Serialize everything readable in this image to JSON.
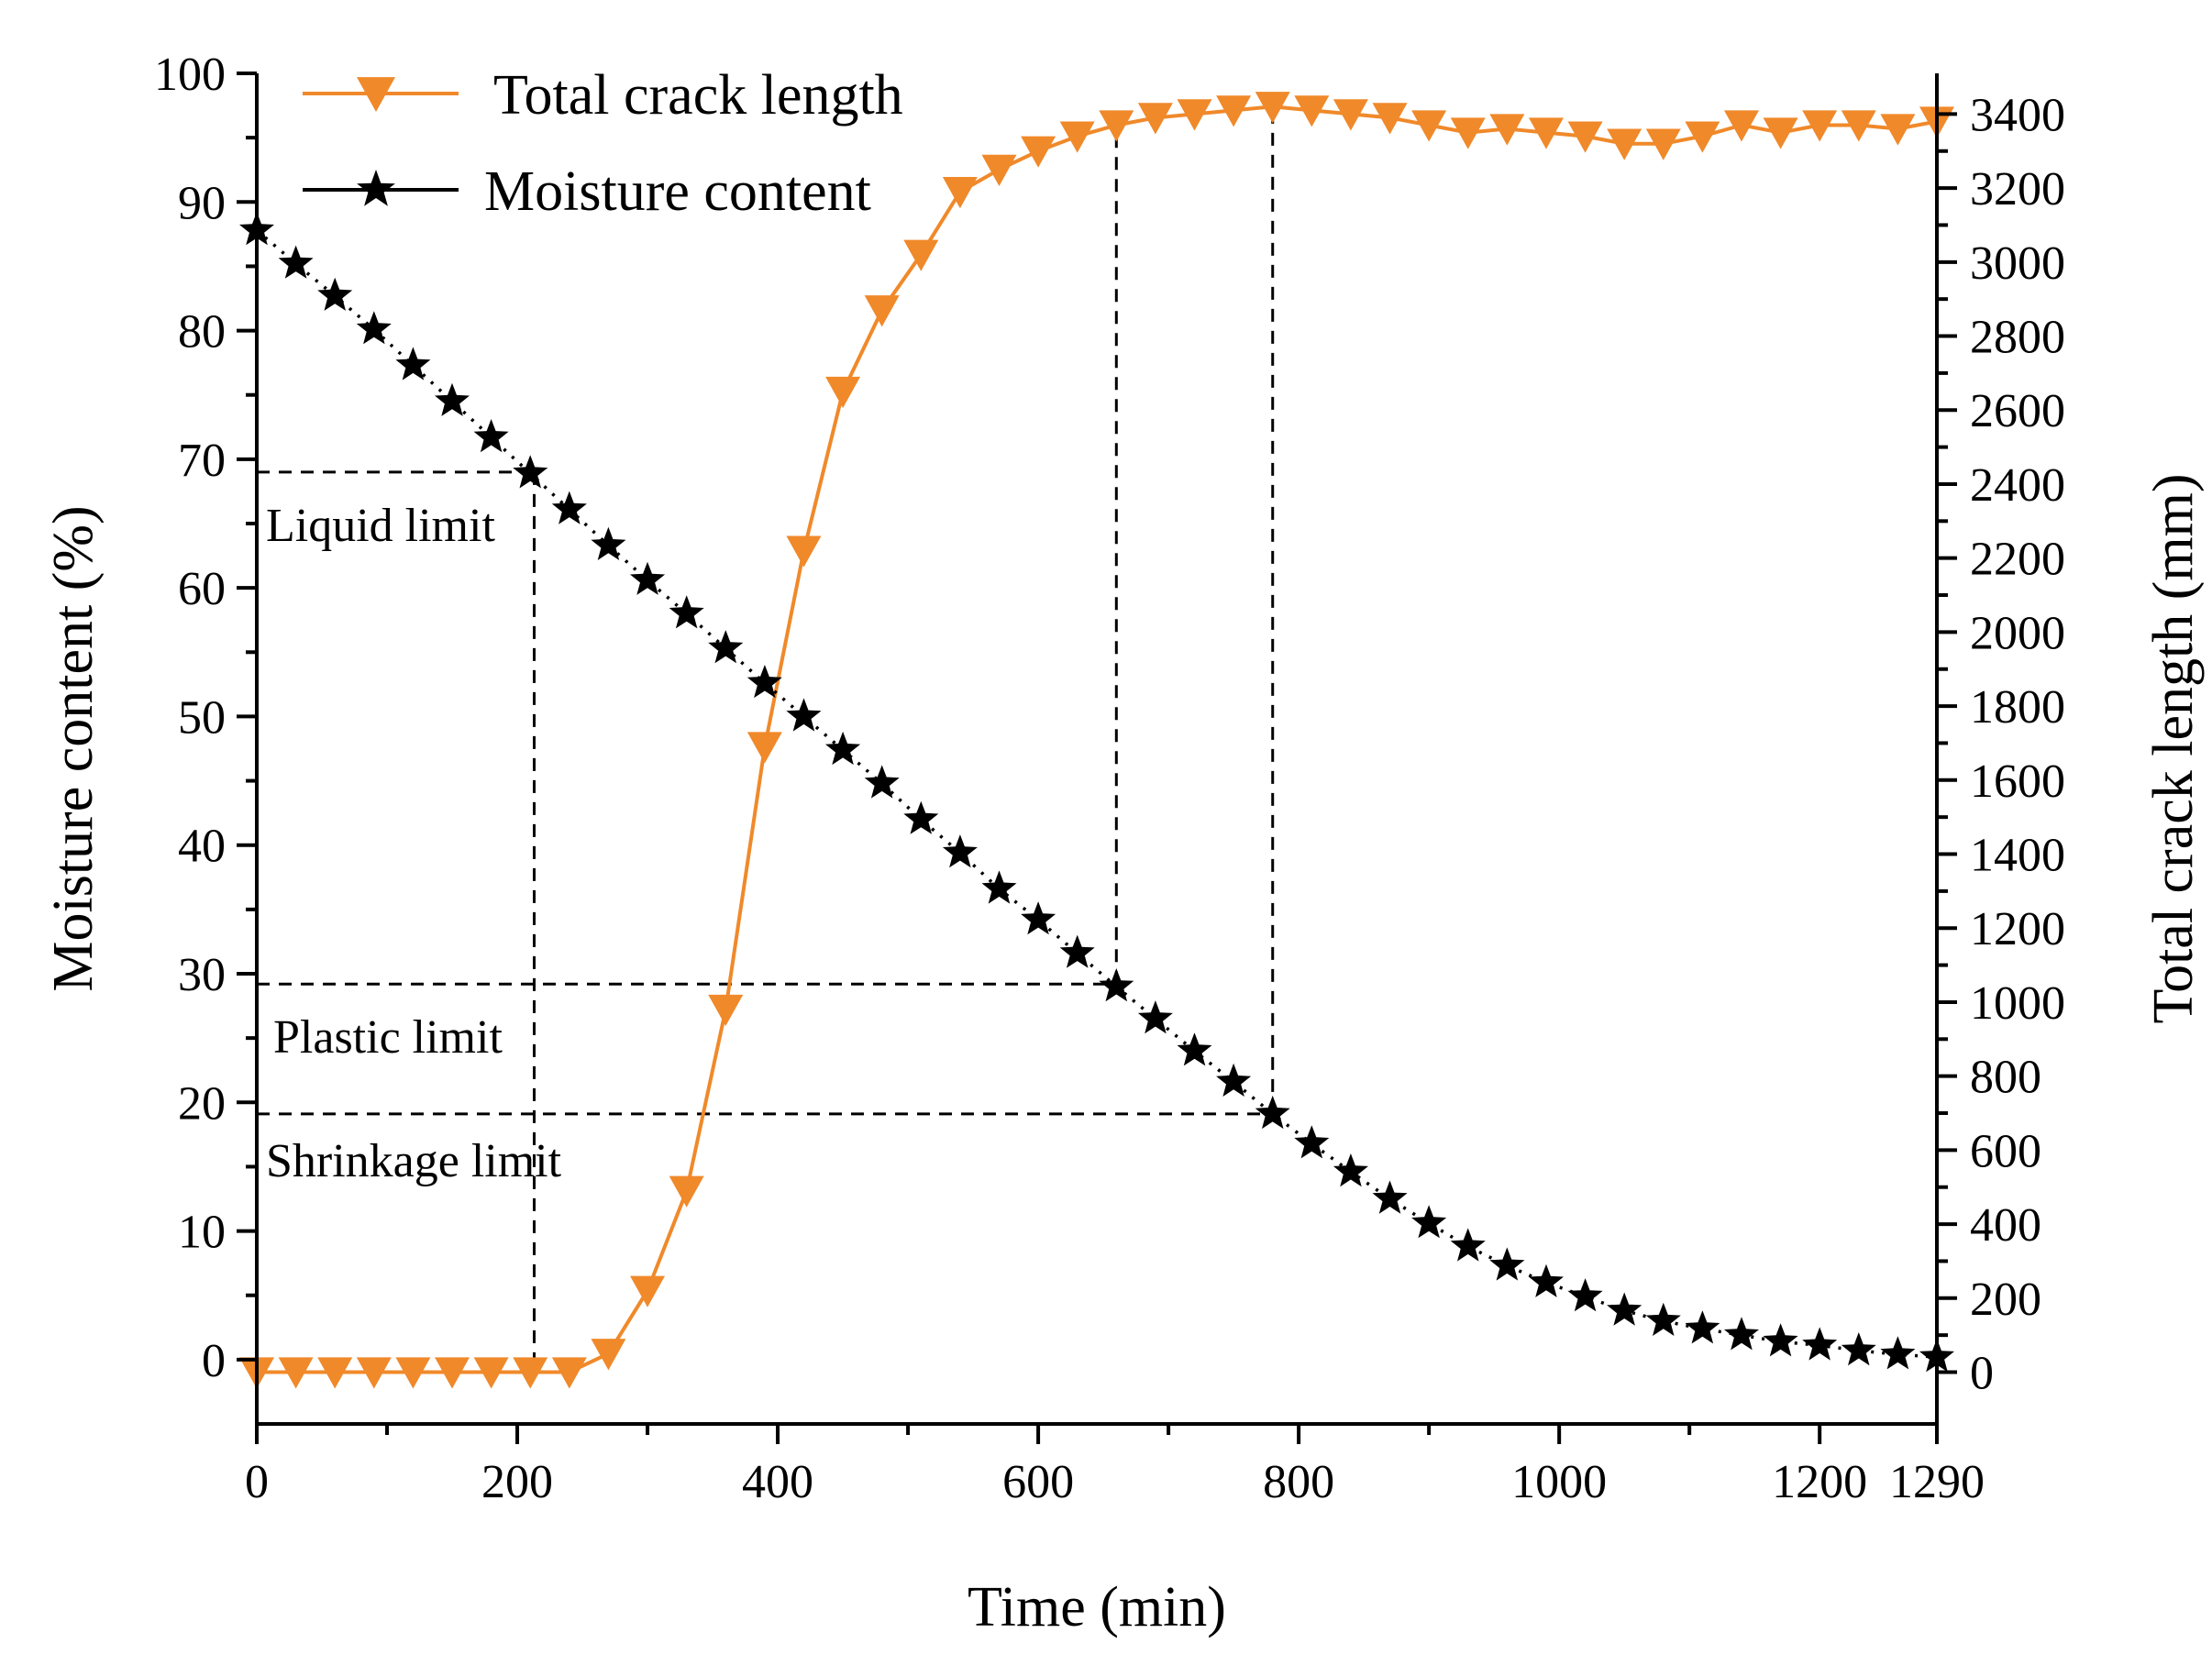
{
  "chart_data": {
    "type": "line",
    "title": "",
    "xlabel": "Time (min)",
    "ylabel_left": "Moisture content (%)",
    "ylabel_right": "Total crack length (mm)",
    "xlim": [
      0,
      1290
    ],
    "ylim_left": [
      -5,
      100
    ],
    "ylim_right": [
      -140,
      3510
    ],
    "x_ticks": [
      0,
      200,
      400,
      600,
      800,
      1000,
      1200,
      1290
    ],
    "y_left_ticks": [
      0,
      10,
      20,
      30,
      40,
      50,
      60,
      70,
      80,
      90,
      100
    ],
    "y_right_ticks": [
      0,
      200,
      400,
      600,
      800,
      1000,
      1200,
      1400,
      1600,
      1800,
      2000,
      2200,
      2400,
      2600,
      2800,
      3000,
      3200,
      3400
    ],
    "x_tick_labels": [
      "0",
      "200",
      "400",
      "600",
      "800",
      "1000",
      "1200",
      "1290"
    ],
    "y_left_tick_labels": [
      "0",
      "10",
      "20",
      "30",
      "40",
      "50",
      "60",
      "70",
      "80",
      "90",
      "100"
    ],
    "y_right_tick_labels": [
      "0",
      "200",
      "400",
      "600",
      "800",
      "1000",
      "1200",
      "1400",
      "1600",
      "1800",
      "2000",
      "2200",
      "2400",
      "2600",
      "2800",
      "3000",
      "3200",
      "3400"
    ],
    "legend": [
      "Total crack length",
      "Moisture content"
    ],
    "legend_position": "top-left",
    "series": [
      {
        "name": "Total crack length",
        "axis": "right",
        "color": "#f0892a",
        "marker": "triangle-down",
        "line_style": "solid",
        "x": [
          0,
          30,
          60,
          90,
          120,
          150,
          180,
          210,
          240,
          270,
          300,
          330,
          360,
          390,
          420,
          450,
          480,
          510,
          540,
          570,
          600,
          630,
          660,
          690,
          720,
          750,
          780,
          810,
          840,
          870,
          900,
          930,
          960,
          990,
          1020,
          1050,
          1080,
          1110,
          1140,
          1170,
          1200,
          1230,
          1260,
          1290
        ],
        "values": [
          0,
          0,
          0,
          0,
          0,
          0,
          0,
          0,
          0,
          50,
          220,
          490,
          980,
          1690,
          2220,
          2650,
          2870,
          3020,
          3190,
          3250,
          3300,
          3340,
          3370,
          3390,
          3400,
          3410,
          3420,
          3410,
          3400,
          3390,
          3370,
          3350,
          3360,
          3350,
          3340,
          3320,
          3320,
          3340,
          3370,
          3350,
          3370,
          3370,
          3360,
          3380
        ]
      },
      {
        "name": "Moisture content",
        "axis": "left",
        "color": "#000000",
        "marker": "star",
        "line_style": "dotted",
        "x": [
          0,
          30,
          60,
          90,
          120,
          150,
          180,
          210,
          240,
          270,
          300,
          330,
          360,
          390,
          420,
          450,
          480,
          510,
          540,
          570,
          600,
          630,
          660,
          690,
          720,
          750,
          780,
          810,
          840,
          870,
          900,
          930,
          960,
          990,
          1020,
          1050,
          1080,
          1110,
          1140,
          1170,
          1200,
          1230,
          1260,
          1290
        ],
        "values": [
          87.8,
          85.2,
          82.7,
          80.1,
          77.3,
          74.5,
          71.7,
          68.9,
          66.1,
          63.3,
          60.6,
          58.0,
          55.3,
          52.6,
          50.0,
          47.4,
          44.8,
          42.0,
          39.4,
          36.6,
          34.2,
          31.6,
          29.0,
          26.5,
          24.0,
          21.6,
          19.1,
          16.8,
          14.6,
          12.5,
          10.6,
          8.8,
          7.3,
          6.0,
          4.9,
          3.8,
          3.0,
          2.4,
          1.9,
          1.4,
          1.1,
          0.7,
          0.4,
          0.2
        ]
      }
    ],
    "annotations": [
      {
        "label": "Liquid limit",
        "moisture": 69,
        "time": 213,
        "crack_time": null
      },
      {
        "label": "Plastic limit",
        "moisture": 29.2,
        "time": 213,
        "crack_time": 660
      },
      {
        "label": "Shrinkage limit",
        "moisture": 19.1,
        "time": 213,
        "crack_time": 780
      }
    ]
  }
}
